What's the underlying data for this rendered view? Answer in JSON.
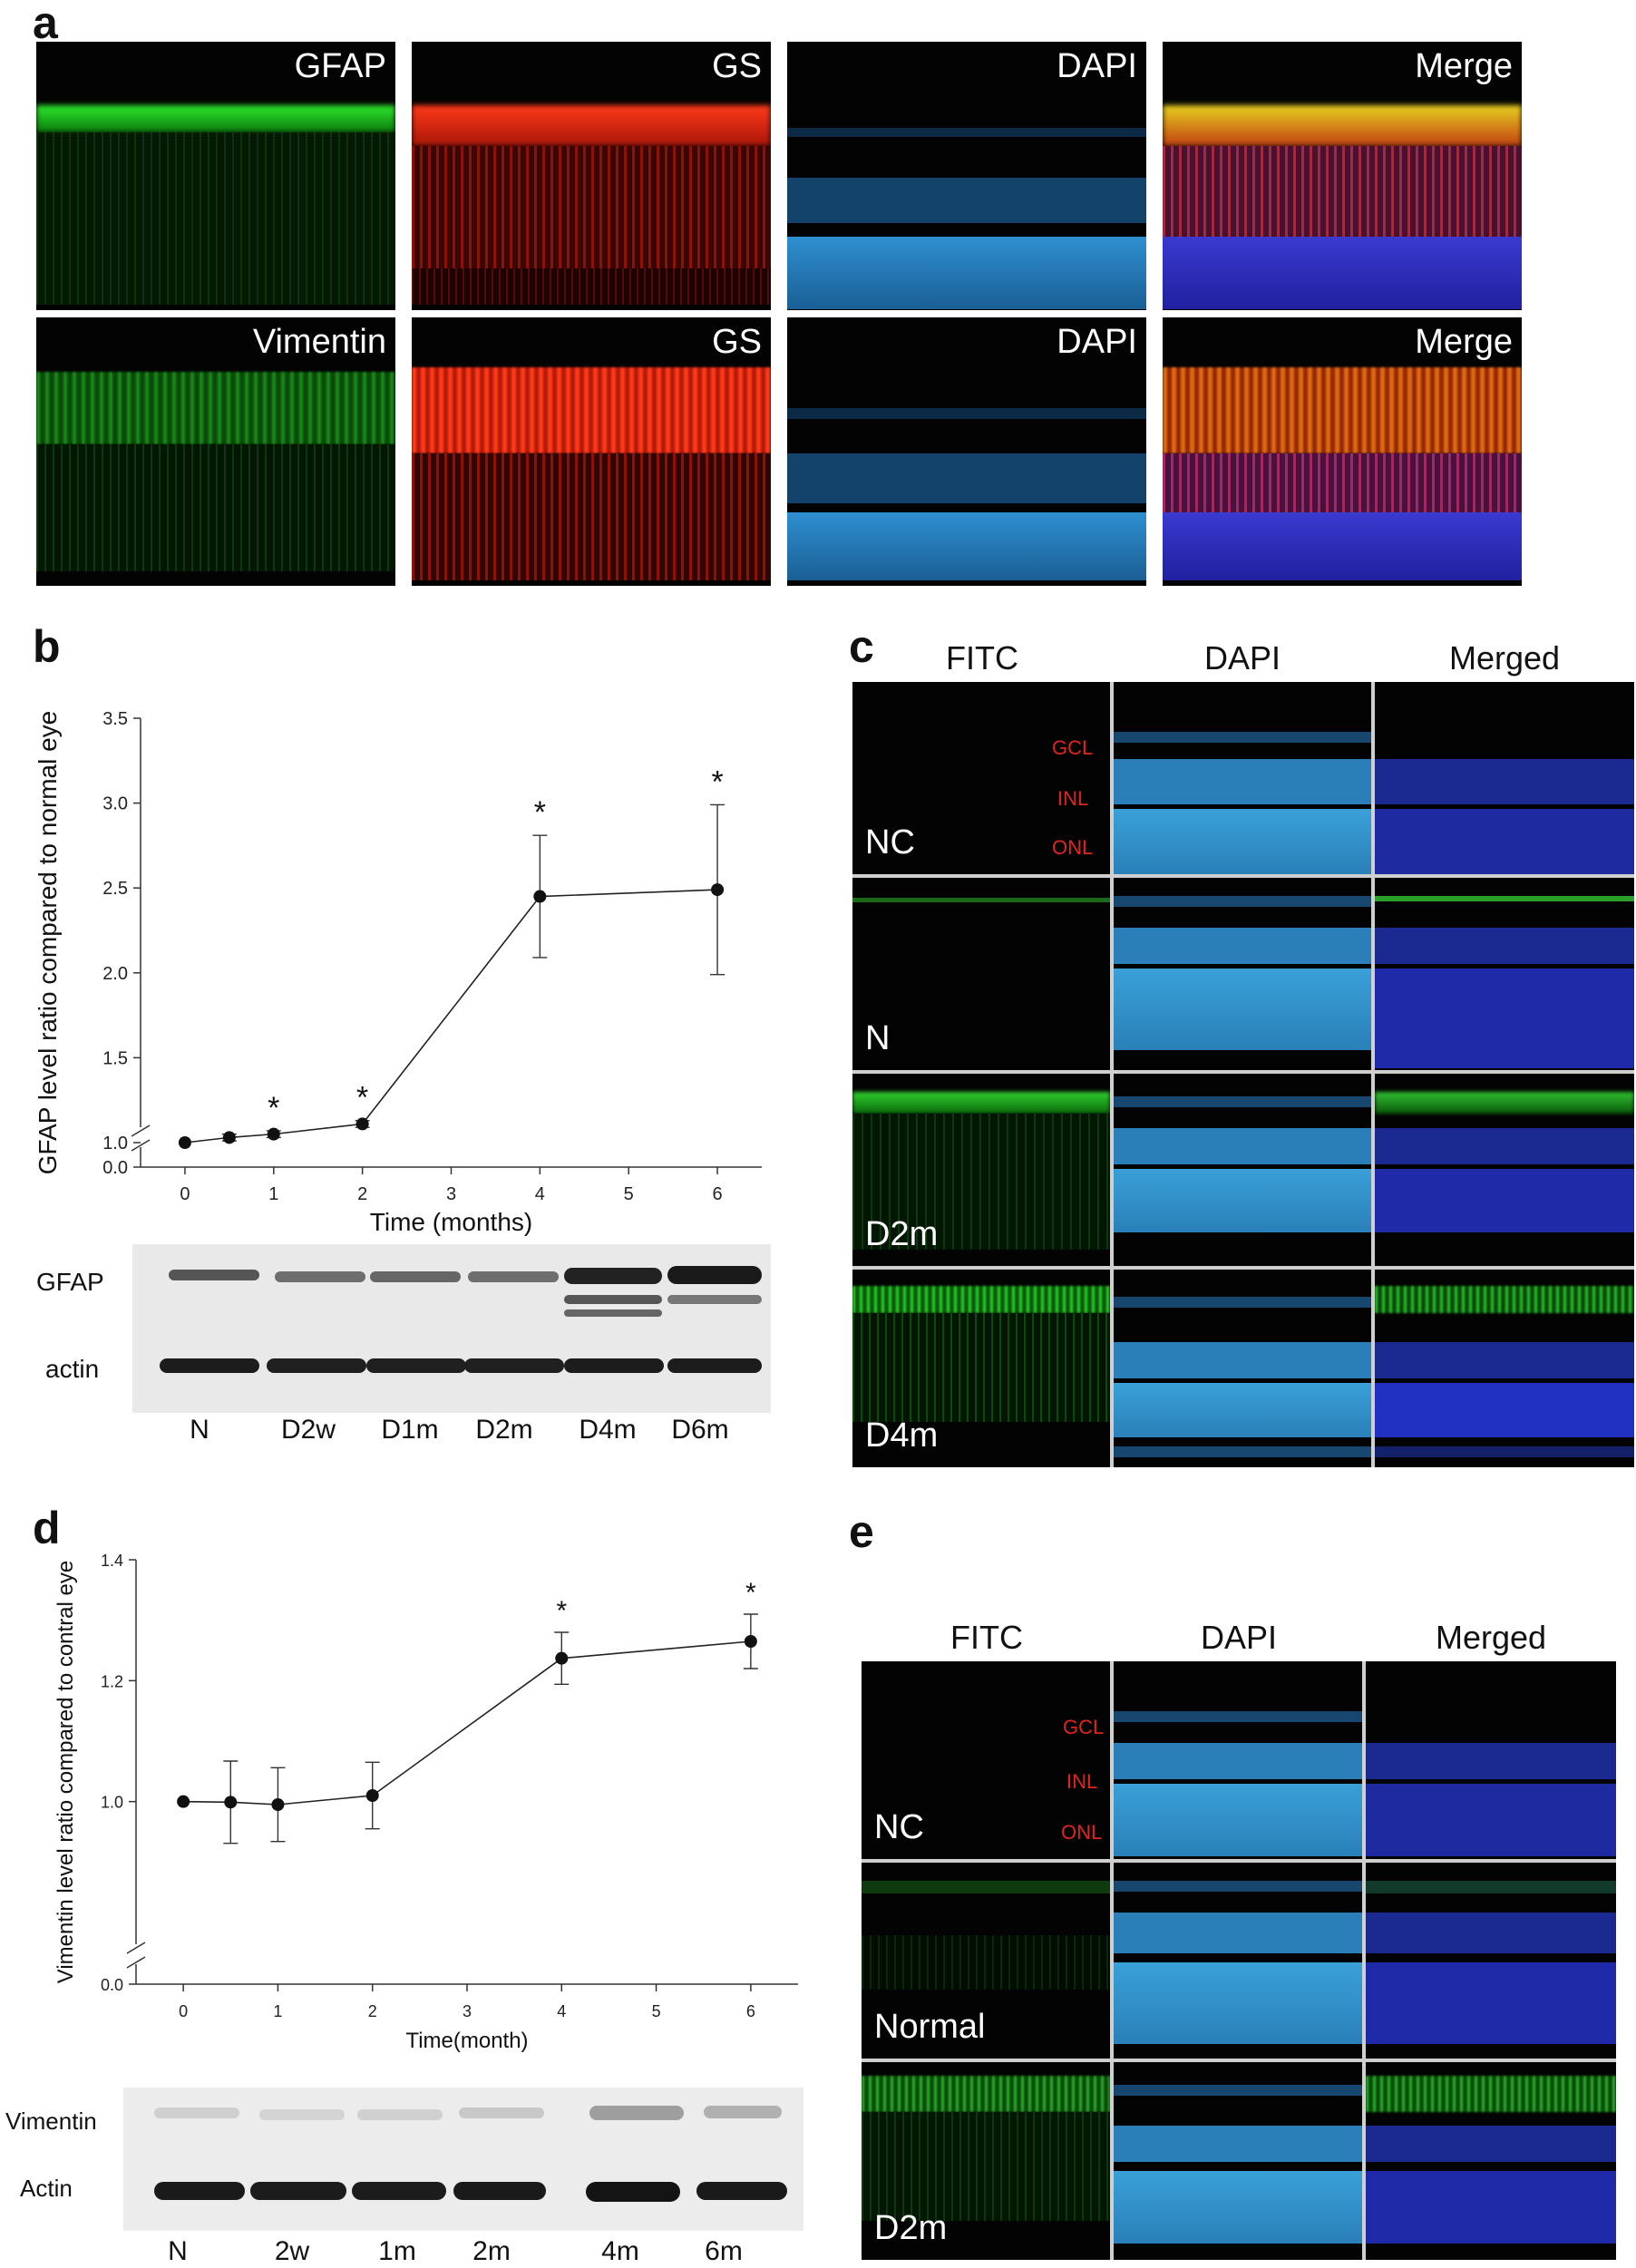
{
  "panel_a": {
    "label": "a",
    "rows": [
      [
        "GFAP",
        "GS",
        "DAPI",
        "Merge"
      ],
      [
        "Vimentin",
        "GS",
        "DAPI",
        "Merge"
      ]
    ]
  },
  "panel_b": {
    "label": "b",
    "blot_rows": [
      "GFAP",
      "actin"
    ],
    "lanes": [
      "N",
      "D2w",
      "D1m",
      "D2m",
      "D4m",
      "D6m"
    ]
  },
  "panel_c": {
    "label": "c",
    "headers": [
      "FITC",
      "DAPI",
      "Merged"
    ],
    "rows": [
      "NC",
      "N",
      "D2m",
      "D4m"
    ],
    "layer_labels": [
      "GCL",
      "INL",
      "ONL"
    ]
  },
  "panel_d": {
    "label": "d",
    "blot_rows": [
      "Vimentin",
      "Actin"
    ],
    "lanes": [
      "N",
      "2w",
      "1m",
      "2m",
      "4m",
      "6m"
    ]
  },
  "panel_e": {
    "label": "e",
    "headers": [
      "FITC",
      "DAPI",
      "Merged"
    ],
    "rows": [
      "NC",
      "Normal",
      "D2m"
    ],
    "layer_labels": [
      "GCL",
      "INL",
      "ONL"
    ]
  },
  "chart_data": [
    {
      "type": "line",
      "xlabel": "Time (months)",
      "ylabel": "GFAP level ratio compared to normal eye",
      "x": [
        0,
        0.5,
        1,
        2,
        4,
        6
      ],
      "values": [
        1.0,
        1.03,
        1.05,
        1.11,
        2.45,
        2.49
      ],
      "errors": [
        0.0,
        0.02,
        0.02,
        0.02,
        0.36,
        0.5
      ],
      "significant": [
        false,
        false,
        true,
        true,
        true,
        true
      ],
      "xticks": [
        "0",
        "1",
        "2",
        "3",
        "4",
        "5",
        "6"
      ],
      "yticks": [
        "0.0",
        "1.0",
        "1.5",
        "2.0",
        "2.5",
        "3.0",
        "3.5"
      ],
      "xlim": [
        -0.5,
        6.5
      ],
      "ylim": [
        0.0,
        3.5
      ],
      "axis_break": true,
      "marker": "*"
    },
    {
      "type": "line",
      "xlabel": "Time(month)",
      "ylabel": "Vimentin level ratio compared to contral eye",
      "x": [
        0,
        0.5,
        1,
        2,
        4,
        6
      ],
      "values": [
        1.0,
        0.999,
        0.995,
        1.01,
        1.237,
        1.265
      ],
      "errors": [
        0.0,
        0.068,
        0.061,
        0.055,
        0.043,
        0.045
      ],
      "significant": [
        false,
        false,
        false,
        false,
        true,
        true
      ],
      "xticks": [
        "0",
        "1",
        "2",
        "3",
        "4",
        "5",
        "6"
      ],
      "yticks": [
        "0.0",
        "1.0",
        "1.2",
        "1.4"
      ],
      "xlim": [
        -0.5,
        6.5
      ],
      "ylim": [
        0.0,
        1.4
      ],
      "axis_break": true,
      "marker": "*"
    }
  ]
}
